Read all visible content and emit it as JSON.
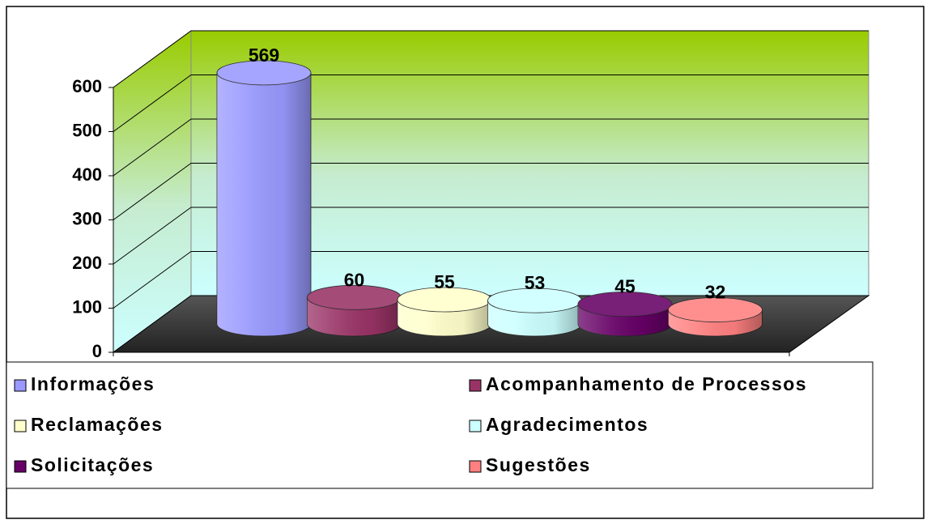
{
  "chart_data": {
    "type": "bar3d",
    "series": [
      {
        "name": "Informações",
        "color": "#9999ff",
        "values": [
          569
        ]
      },
      {
        "name": "Acompanhamento de Processos",
        "color": "#993366",
        "values": [
          60
        ]
      },
      {
        "name": "Reclamações",
        "color": "#ffffcc",
        "values": [
          55
        ]
      },
      {
        "name": "Agradecimentos",
        "color": "#ccffff",
        "values": [
          53
        ]
      },
      {
        "name": "Solicitações",
        "color": "#660066",
        "values": [
          45
        ]
      },
      {
        "name": "Sugestões",
        "color": "#ff8080",
        "values": [
          32
        ]
      }
    ],
    "ylim": [
      0,
      600
    ],
    "yticks": [
      0,
      100,
      200,
      300,
      400,
      500,
      600
    ],
    "grid": true
  }
}
